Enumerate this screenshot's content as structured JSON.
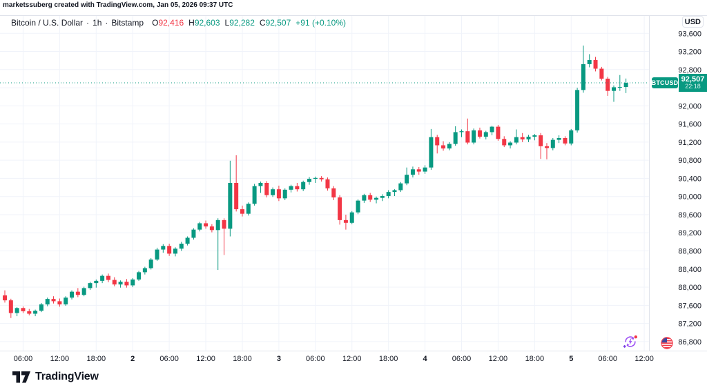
{
  "attribution": "marketssuberg created with TradingView.com, Jan 05, 2026 09:37 UTC",
  "legend": {
    "symbol_title": "Bitcoin / U.S. Dollar",
    "separator": "·",
    "interval": "1h",
    "exchange": "Bitstamp",
    "ohlc": [
      {
        "label": "O",
        "value": "92,416",
        "color": "#F23645"
      },
      {
        "label": "H",
        "value": "92,603",
        "color": "#089981"
      },
      {
        "label": "L",
        "value": "92,282",
        "color": "#089981"
      },
      {
        "label": "C",
        "value": "92,507",
        "color": "#089981"
      }
    ],
    "change": "+91 (+0.10%)",
    "change_color": "#089981"
  },
  "price_axis": {
    "currency": "USD",
    "tick_labels": [
      {
        "price": 93600,
        "label": "93,600"
      },
      {
        "price": 93200,
        "label": "93,200"
      },
      {
        "price": 92800,
        "label": "92,800"
      },
      {
        "price": 92000,
        "label": "92,000"
      },
      {
        "price": 91600,
        "label": "91,600"
      },
      {
        "price": 91200,
        "label": "91,200"
      },
      {
        "price": 90800,
        "label": "90,800"
      },
      {
        "price": 90400,
        "label": "90,400"
      },
      {
        "price": 90000,
        "label": "90,000"
      },
      {
        "price": 89600,
        "label": "89,600"
      },
      {
        "price": 89200,
        "label": "89,200"
      },
      {
        "price": 88800,
        "label": "88,800"
      },
      {
        "price": 88400,
        "label": "88,400"
      },
      {
        "price": 88000,
        "label": "88,000"
      },
      {
        "price": 87600,
        "label": "87,600"
      },
      {
        "price": 87200,
        "label": "87,200"
      },
      {
        "price": 86800,
        "label": "86,800"
      }
    ],
    "last_price_marker": {
      "symbol": "BTCUSD",
      "price_label": "92,507",
      "countdown": "22:18"
    }
  },
  "time_axis": {
    "ticks": [
      {
        "i": 3,
        "label": "06:00",
        "is_day": false
      },
      {
        "i": 9,
        "label": "12:00",
        "is_day": false
      },
      {
        "i": 15,
        "label": "18:00",
        "is_day": false
      },
      {
        "i": 21,
        "label": "2",
        "is_day": true
      },
      {
        "i": 27,
        "label": "06:00",
        "is_day": false
      },
      {
        "i": 33,
        "label": "12:00",
        "is_day": false
      },
      {
        "i": 39,
        "label": "18:00",
        "is_day": false
      },
      {
        "i": 45,
        "label": "3",
        "is_day": true
      },
      {
        "i": 51,
        "label": "06:00",
        "is_day": false
      },
      {
        "i": 57,
        "label": "12:00",
        "is_day": false
      },
      {
        "i": 63,
        "label": "18:00",
        "is_day": false
      },
      {
        "i": 69,
        "label": "4",
        "is_day": true
      },
      {
        "i": 75,
        "label": "06:00",
        "is_day": false
      },
      {
        "i": 81,
        "label": "12:00",
        "is_day": false
      },
      {
        "i": 87,
        "label": "18:00",
        "is_day": false
      },
      {
        "i": 93,
        "label": "5",
        "is_day": true
      },
      {
        "i": 99,
        "label": "06:00",
        "is_day": false
      },
      {
        "i": 105,
        "label": "12:00",
        "is_day": false
      }
    ]
  },
  "chart_data": {
    "type": "candlestick",
    "title": "Bitcoin / U.S. Dollar, 1h, Bitstamp",
    "xlabel": "",
    "ylabel": "USD",
    "ylim": [
      86600,
      94000
    ],
    "grid_step": 400,
    "grid": true,
    "up_color": "#089981",
    "down_color": "#F23645",
    "grid_color": "#F0F3FA",
    "axis_line_color": "#E0E3EB",
    "axis_text_color": "#131722",
    "current_price": 92507,
    "open_values_note": "candles are hourly, Jan 1 03:00 UTC through Jan 5 09:00 UTC, format [open, high, low, close]",
    "candles": [
      [
        87820,
        87930,
        87660,
        87710
      ],
      [
        87710,
        87745,
        87320,
        87430
      ],
      [
        87430,
        87560,
        87360,
        87540
      ],
      [
        87540,
        87575,
        87430,
        87470
      ],
      [
        87470,
        87520,
        87380,
        87415
      ],
      [
        87415,
        87505,
        87360,
        87480
      ],
      [
        87480,
        87650,
        87450,
        87620
      ],
      [
        87620,
        87770,
        87580,
        87740
      ],
      [
        87740,
        87800,
        87640,
        87690
      ],
      [
        87690,
        87750,
        87570,
        87620
      ],
      [
        87620,
        87800,
        87590,
        87770
      ],
      [
        87770,
        87930,
        87730,
        87900
      ],
      [
        87900,
        87980,
        87780,
        87830
      ],
      [
        87830,
        88010,
        87800,
        87980
      ],
      [
        87980,
        88120,
        87940,
        88090
      ],
      [
        88090,
        88170,
        87990,
        88140
      ],
      [
        88140,
        88280,
        88090,
        88250
      ],
      [
        88250,
        88300,
        88110,
        88160
      ],
      [
        88160,
        88220,
        88020,
        88060
      ],
      [
        88060,
        88150,
        87990,
        88120
      ],
      [
        88120,
        88180,
        87990,
        88040
      ],
      [
        88040,
        88200,
        88000,
        88170
      ],
      [
        88170,
        88360,
        88140,
        88330
      ],
      [
        88330,
        88450,
        88280,
        88420
      ],
      [
        88420,
        88640,
        88390,
        88610
      ],
      [
        88610,
        88870,
        88580,
        88830
      ],
      [
        88830,
        88950,
        88760,
        88910
      ],
      [
        88910,
        88960,
        88690,
        88740
      ],
      [
        88740,
        88880,
        88680,
        88850
      ],
      [
        88850,
        89000,
        88800,
        88960
      ],
      [
        88960,
        89120,
        88920,
        89090
      ],
      [
        89090,
        89300,
        89050,
        89270
      ],
      [
        89270,
        89440,
        89230,
        89410
      ],
      [
        89410,
        89470,
        89290,
        89340
      ],
      [
        89340,
        89390,
        89210,
        89260
      ],
      [
        89260,
        89520,
        88380,
        89480
      ],
      [
        89480,
        89520,
        88710,
        89290
      ],
      [
        89290,
        90790,
        89120,
        90300
      ],
      [
        90300,
        90910,
        89670,
        89720
      ],
      [
        89720,
        89800,
        89560,
        89620
      ],
      [
        89620,
        89870,
        89580,
        89840
      ],
      [
        89840,
        90280,
        89800,
        90230
      ],
      [
        90230,
        90330,
        90080,
        90300
      ],
      [
        90300,
        90340,
        89980,
        90030
      ],
      [
        90030,
        90200,
        89990,
        90160
      ],
      [
        90160,
        90240,
        89900,
        89960
      ],
      [
        89960,
        90180,
        89920,
        90150
      ],
      [
        90150,
        90260,
        90090,
        90230
      ],
      [
        90230,
        90300,
        90110,
        90160
      ],
      [
        90160,
        90350,
        90120,
        90320
      ],
      [
        90320,
        90430,
        90260,
        90390
      ],
      [
        90390,
        90440,
        90300,
        90410
      ],
      [
        90410,
        90450,
        90330,
        90380
      ],
      [
        90380,
        90420,
        90130,
        90180
      ],
      [
        90180,
        90230,
        89920,
        89980
      ],
      [
        89980,
        90030,
        89380,
        89480
      ],
      [
        89480,
        89600,
        89270,
        89420
      ],
      [
        89420,
        89680,
        89390,
        89650
      ],
      [
        89650,
        89940,
        89610,
        89910
      ],
      [
        89910,
        90060,
        89860,
        90030
      ],
      [
        90030,
        90080,
        89880,
        89930
      ],
      [
        89930,
        90000,
        89850,
        89970
      ],
      [
        89970,
        90050,
        89900,
        90010
      ],
      [
        90010,
        90140,
        89960,
        90100
      ],
      [
        90100,
        90160,
        90010,
        90140
      ],
      [
        90140,
        90320,
        90100,
        90290
      ],
      [
        90290,
        90640,
        90250,
        90480
      ],
      [
        90480,
        90660,
        90420,
        90600
      ],
      [
        90600,
        90650,
        90480,
        90550
      ],
      [
        90550,
        90690,
        90500,
        90640
      ],
      [
        90640,
        91490,
        90590,
        91310
      ],
      [
        91310,
        91360,
        90950,
        91130
      ],
      [
        91130,
        91220,
        91010,
        91060
      ],
      [
        91060,
        91200,
        91020,
        91160
      ],
      [
        91160,
        91550,
        91120,
        91420
      ],
      [
        91420,
        91480,
        91310,
        91440
      ],
      [
        91440,
        91720,
        91150,
        91190
      ],
      [
        91190,
        91500,
        91150,
        91460
      ],
      [
        91460,
        91520,
        91280,
        91320
      ],
      [
        91320,
        91450,
        91260,
        91420
      ],
      [
        91420,
        91560,
        91350,
        91540
      ],
      [
        91540,
        91580,
        91230,
        91270
      ],
      [
        91270,
        91330,
        91090,
        91130
      ],
      [
        91130,
        91220,
        91060,
        91190
      ],
      [
        91190,
        91480,
        91150,
        91310
      ],
      [
        91310,
        91400,
        91200,
        91260
      ],
      [
        91260,
        91360,
        91200,
        91320
      ],
      [
        91320,
        91380,
        91240,
        91350
      ],
      [
        91350,
        91400,
        90830,
        91110
      ],
      [
        91110,
        91180,
        90820,
        91070
      ],
      [
        91070,
        91290,
        91020,
        91250
      ],
      [
        91250,
        91350,
        91180,
        91290
      ],
      [
        91290,
        91330,
        91130,
        91170
      ],
      [
        91170,
        91490,
        91130,
        91460
      ],
      [
        91460,
        92400,
        91410,
        92350
      ],
      [
        92350,
        93330,
        92290,
        92920
      ],
      [
        92920,
        93140,
        92850,
        93010
      ],
      [
        93010,
        93080,
        92760,
        92820
      ],
      [
        92820,
        92860,
        92560,
        92600
      ],
      [
        92600,
        92640,
        92220,
        92330
      ],
      [
        92330,
        92450,
        92090,
        92410
      ],
      [
        92410,
        92680,
        92330,
        92416
      ],
      [
        92416,
        92603,
        92282,
        92507
      ]
    ]
  },
  "footer": {
    "brand": "TradingView"
  }
}
